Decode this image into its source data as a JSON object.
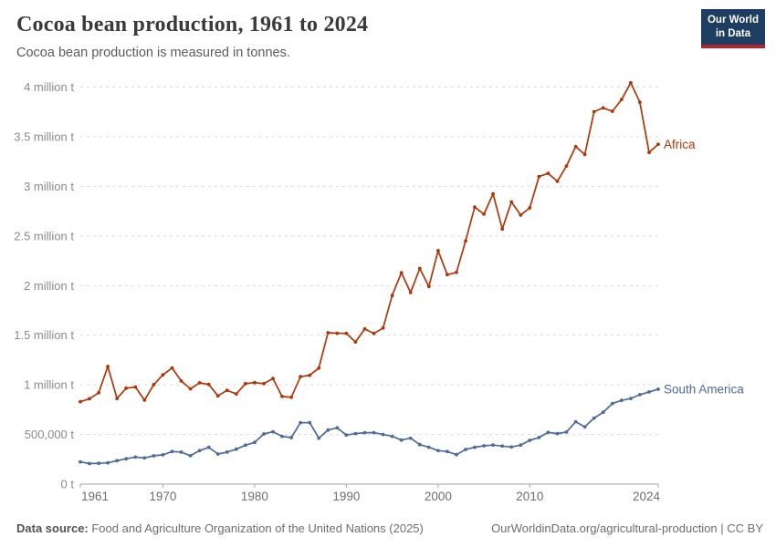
{
  "header": {
    "title": "Cocoa bean production, 1961 to 2024",
    "subtitle": "Cocoa bean production is measured in tonnes.",
    "logo": {
      "line1": "Our World",
      "line2": "in Data"
    }
  },
  "footer": {
    "source_label": "Data source:",
    "source_text": " Food and Agriculture Organization of the United Nations (2025)",
    "link_text": "OurWorldinData.org/agricultural-production | CC BY"
  },
  "colors": {
    "africa": "#B13507",
    "south_america": "#4C6A9C",
    "grid": "#DADADA",
    "axis": "#A5A5A5",
    "y_tick_text": "#8A8A8A",
    "x_tick_text": "#6E6E6E",
    "logo_bg": "#1D3D63",
    "logo_stripe": "#B5232B"
  },
  "chart_data": {
    "type": "line",
    "title": "Cocoa bean production, 1961 to 2024",
    "subtitle": "Cocoa bean production is measured in tonnes.",
    "xlabel": "",
    "ylabel": "tonnes",
    "xlim": [
      1961,
      2024
    ],
    "ylim": [
      0,
      4000000
    ],
    "grid": "dashed-horizontal",
    "legend_position": "end-of-line-labels",
    "xticks": [
      1961,
      1970,
      1980,
      1990,
      2000,
      2010,
      2024
    ],
    "yticks": [
      {
        "value": 0,
        "label": "0 t"
      },
      {
        "value": 500000,
        "label": "500,000 t"
      },
      {
        "value": 1000000,
        "label": "1 million t"
      },
      {
        "value": 1500000,
        "label": "1.5 million t"
      },
      {
        "value": 2000000,
        "label": "2 million t"
      },
      {
        "value": 2500000,
        "label": "2.5 million t"
      },
      {
        "value": 3000000,
        "label": "3 million t"
      },
      {
        "value": 3500000,
        "label": "3.5 million t"
      },
      {
        "value": 4000000,
        "label": "4 million t"
      }
    ],
    "x": [
      1961,
      1962,
      1963,
      1964,
      1965,
      1966,
      1967,
      1968,
      1969,
      1970,
      1971,
      1972,
      1973,
      1974,
      1975,
      1976,
      1977,
      1978,
      1979,
      1980,
      1981,
      1982,
      1983,
      1984,
      1985,
      1986,
      1987,
      1988,
      1989,
      1990,
      1991,
      1992,
      1993,
      1994,
      1995,
      1996,
      1997,
      1998,
      1999,
      2000,
      2001,
      2002,
      2003,
      2004,
      2005,
      2006,
      2007,
      2008,
      2009,
      2010,
      2011,
      2012,
      2013,
      2014,
      2015,
      2016,
      2017,
      2018,
      2019,
      2020,
      2021,
      2022,
      2023,
      2024
    ],
    "series": [
      {
        "name": "Africa",
        "color": "#B13507",
        "values": [
          830000,
          860000,
          920000,
          1185000,
          862000,
          966000,
          978000,
          846000,
          1002000,
          1100000,
          1170000,
          1039000,
          960000,
          1020000,
          1004000,
          889000,
          944000,
          908000,
          1012000,
          1022000,
          1012000,
          1064000,
          883000,
          874000,
          1082000,
          1097000,
          1168000,
          1525000,
          1520000,
          1518000,
          1432000,
          1563000,
          1517000,
          1572000,
          1900000,
          2130000,
          1930000,
          2172000,
          1990000,
          2352000,
          2110000,
          2133000,
          2450000,
          2790000,
          2720000,
          2924000,
          2570000,
          2843000,
          2710000,
          2783000,
          3098000,
          3130000,
          3050000,
          3205000,
          3400000,
          3320000,
          3752000,
          3790000,
          3757000,
          3873000,
          4043000,
          3847000,
          3341000,
          3423000
        ]
      },
      {
        "name": "South America",
        "color": "#4C6A9C",
        "values": [
          224000,
          207000,
          209000,
          214000,
          236000,
          255000,
          272000,
          264000,
          285000,
          295000,
          328000,
          322000,
          286000,
          337000,
          370000,
          303000,
          322000,
          352000,
          392000,
          420000,
          505000,
          527000,
          481000,
          468000,
          619000,
          619000,
          463000,
          545000,
          567000,
          494000,
          509000,
          518000,
          518000,
          500000,
          481000,
          444000,
          463000,
          398000,
          371000,
          337000,
          328000,
          297000,
          349000,
          371000,
          386000,
          393000,
          383000,
          374000,
          393000,
          441000,
          469000,
          521000,
          509000,
          524000,
          628000,
          576000,
          665000,
          724000,
          812000,
          843000,
          862000,
          901000,
          929000,
          956000
        ]
      }
    ]
  }
}
